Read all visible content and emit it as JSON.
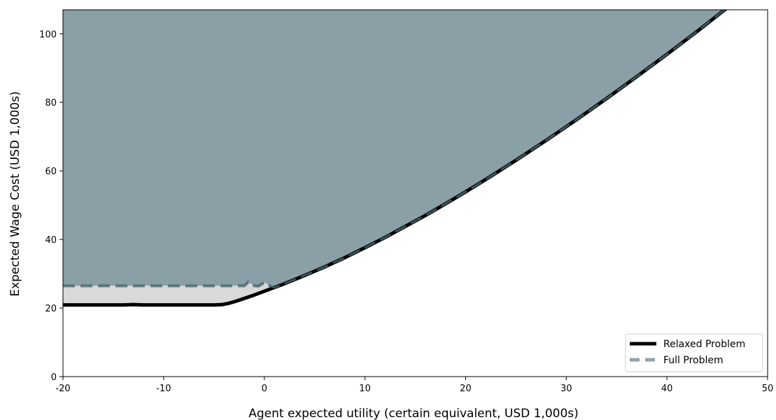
{
  "chart_data": {
    "type": "area",
    "xlabel": "Agent expected utility (certain equivalent, USD 1,000s)",
    "ylabel": "Expected Wage Cost (USD 1,000s)",
    "xlim": [
      -20,
      50
    ],
    "ylim": [
      0,
      107
    ],
    "x_ticks": [
      -20,
      -10,
      0,
      10,
      20,
      30,
      40,
      50
    ],
    "y_ticks": [
      0,
      20,
      40,
      60,
      80,
      100
    ],
    "grid": false,
    "legend_position": "bottom-right",
    "series": [
      {
        "name": "Relaxed Problem",
        "style": "solid",
        "color": "#000000",
        "points": [
          [
            -20,
            20.9
          ],
          [
            -14,
            20.9
          ],
          [
            -13,
            21.0
          ],
          [
            -12,
            20.9
          ],
          [
            -8,
            20.9
          ],
          [
            -5,
            20.9
          ],
          [
            -4.2,
            21.0
          ],
          [
            -3.5,
            21.4
          ],
          [
            -2.8,
            22.0
          ],
          [
            -2,
            22.8
          ],
          [
            -1,
            23.8
          ],
          [
            0,
            24.9
          ],
          [
            1,
            26.0
          ],
          [
            2,
            27.1
          ],
          [
            4,
            29.5
          ],
          [
            6,
            32.0
          ],
          [
            8,
            34.7
          ],
          [
            10,
            37.6
          ],
          [
            12,
            40.6
          ],
          [
            14,
            43.8
          ],
          [
            16,
            47.0
          ],
          [
            18,
            50.4
          ],
          [
            20,
            53.9
          ],
          [
            22,
            57.5
          ],
          [
            25,
            63.1
          ],
          [
            28,
            68.9
          ],
          [
            31,
            74.9
          ],
          [
            34,
            81.1
          ],
          [
            37,
            87.5
          ],
          [
            40,
            94.0
          ],
          [
            43,
            100.7
          ],
          [
            46,
            107.6
          ],
          [
            50,
            117.0
          ]
        ]
      },
      {
        "name": "Full Problem",
        "style": "dashed",
        "color": "#8fa4aa",
        "points": [
          [
            -20,
            26.5
          ],
          [
            -2,
            26.5
          ],
          [
            -1.8,
            27.0
          ],
          [
            -1.6,
            27.6
          ],
          [
            -1.3,
            27.0
          ],
          [
            -1.0,
            26.5
          ],
          [
            -0.6,
            26.4
          ],
          [
            -0.3,
            26.9
          ],
          [
            0,
            27.5
          ],
          [
            0.3,
            27.0
          ],
          [
            0.7,
            26.3
          ],
          [
            1,
            26.0
          ],
          [
            2,
            27.1
          ],
          [
            4,
            29.5
          ],
          [
            6,
            32.0
          ],
          [
            8,
            34.7
          ],
          [
            10,
            37.6
          ],
          [
            12,
            40.6
          ],
          [
            14,
            43.8
          ],
          [
            16,
            47.0
          ],
          [
            18,
            50.4
          ],
          [
            20,
            53.9
          ],
          [
            22,
            57.5
          ],
          [
            25,
            63.1
          ],
          [
            28,
            68.9
          ],
          [
            31,
            74.9
          ],
          [
            34,
            81.1
          ],
          [
            37,
            87.5
          ],
          [
            40,
            94.0
          ],
          [
            43,
            100.7
          ],
          [
            46,
            107.6
          ],
          [
            50,
            117.0
          ]
        ]
      }
    ],
    "fill_regions": [
      {
        "name": "full-problem-feasible-region",
        "color": "#8aa0a6",
        "bounded_below_by": "Full Problem"
      },
      {
        "name": "relaxed-gap-region",
        "color": "#d9d9d9",
        "between": [
          "Relaxed Problem",
          "Full Problem"
        ]
      }
    ]
  }
}
